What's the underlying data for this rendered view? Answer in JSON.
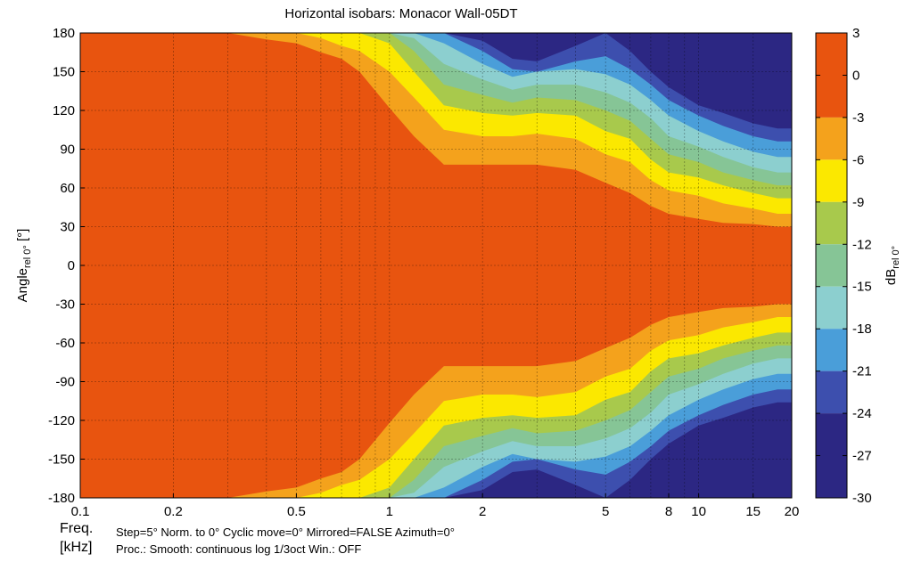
{
  "chart_data": {
    "type": "heatmap",
    "title": "Horizontal isobars: Monacor  Wall-05DT",
    "xlabel": "Freq.",
    "xlabel_unit": "[kHz]",
    "ylabel_main": "Angle",
    "ylabel_sub": "rel 0°",
    "ylabel_unit": " [°]",
    "x_scale": "log",
    "xlim": [
      0.1,
      20
    ],
    "x_ticks": [
      {
        "v": 0.1,
        "label": "0.1"
      },
      {
        "v": 0.2,
        "label": "0.2"
      },
      {
        "v": 0.5,
        "label": "0.5"
      },
      {
        "v": 1,
        "label": "1"
      },
      {
        "v": 2,
        "label": "2"
      },
      {
        "v": 5,
        "label": "5"
      },
      {
        "v": 8,
        "label": "8"
      },
      {
        "v": 10,
        "label": "10"
      },
      {
        "v": 15,
        "label": "15"
      },
      {
        "v": 20,
        "label": "20"
      }
    ],
    "ylim": [
      -180,
      180
    ],
    "y_ticks": [
      {
        "v": 180,
        "label": "180"
      },
      {
        "v": 150,
        "label": "150"
      },
      {
        "v": 120,
        "label": "120"
      },
      {
        "v": 90,
        "label": "90"
      },
      {
        "v": 60,
        "label": "60"
      },
      {
        "v": 30,
        "label": "30"
      },
      {
        "v": 0,
        "label": "0"
      },
      {
        "v": -30,
        "label": "-30"
      },
      {
        "v": -60,
        "label": "-60"
      },
      {
        "v": -90,
        "label": "-90"
      },
      {
        "v": -120,
        "label": "-120"
      },
      {
        "v": -150,
        "label": "-150"
      },
      {
        "v": -180,
        "label": "-180"
      }
    ],
    "grid": true,
    "colorbar": {
      "label_main": "dB",
      "label_sub": "rel 0°",
      "range": [
        -30,
        3
      ],
      "tick_labels": [
        "3",
        "0",
        "-3",
        "-6",
        "-9",
        "-12",
        "-15",
        "-18",
        "-21",
        "-24",
        "-27",
        "-30"
      ],
      "bands": [
        {
          "from": -3,
          "to": 3,
          "color": "#e8540f"
        },
        {
          "from": -6,
          "to": -3,
          "color": "#f4a21c"
        },
        {
          "from": -9,
          "to": -6,
          "color": "#fbe800"
        },
        {
          "from": -12,
          "to": -9,
          "color": "#a8c94c"
        },
        {
          "from": -15,
          "to": -12,
          "color": "#86c596"
        },
        {
          "from": -18,
          "to": -15,
          "color": "#8ccfcf"
        },
        {
          "from": -21,
          "to": -18,
          "color": "#4a9ed9"
        },
        {
          "from": -24,
          "to": -21,
          "color": "#3d4fae"
        },
        {
          "from": -30,
          "to": -24,
          "color": "#2c2783"
        }
      ]
    },
    "contour_boundaries_deg": {
      "freqs_khz": [
        0.1,
        0.2,
        0.3,
        0.4,
        0.5,
        0.6,
        0.7,
        0.8,
        1.0,
        1.2,
        1.5,
        2.0,
        2.5,
        3.0,
        4.0,
        5.0,
        6.0,
        7.0,
        8.0,
        10.0,
        12.0,
        15.0,
        18.0,
        20.0
      ],
      "minus3dB": [
        180,
        180,
        180,
        175,
        172,
        165,
        160,
        150,
        122,
        100,
        78,
        78,
        78,
        78,
        74,
        64,
        56,
        46,
        40,
        36,
        33,
        32,
        30,
        30
      ],
      "minus6dB": [
        180,
        180,
        180,
        180,
        180,
        176,
        170,
        166,
        150,
        130,
        105,
        100,
        100,
        102,
        98,
        86,
        80,
        66,
        58,
        54,
        48,
        44,
        40,
        40
      ],
      "minus9dB": [
        180,
        180,
        180,
        180,
        180,
        180,
        180,
        180,
        172,
        150,
        124,
        118,
        116,
        118,
        116,
        104,
        98,
        82,
        72,
        68,
        62,
        56,
        52,
        52
      ],
      "minus12dB": [
        180,
        180,
        180,
        180,
        180,
        180,
        180,
        180,
        180,
        166,
        140,
        132,
        126,
        130,
        128,
        120,
        112,
        98,
        86,
        80,
        72,
        66,
        62,
        62
      ],
      "minus15dB": [
        180,
        180,
        180,
        180,
        180,
        180,
        180,
        180,
        180,
        176,
        156,
        144,
        136,
        140,
        140,
        134,
        126,
        114,
        100,
        92,
        84,
        76,
        72,
        72
      ],
      "minus18dB": [
        180,
        180,
        180,
        180,
        180,
        180,
        180,
        180,
        180,
        180,
        172,
        156,
        146,
        150,
        152,
        148,
        140,
        128,
        116,
        104,
        96,
        88,
        84,
        84
      ],
      "minus21dB": [
        180,
        180,
        180,
        180,
        180,
        180,
        180,
        180,
        180,
        180,
        180,
        166,
        152,
        150,
        158,
        162,
        152,
        140,
        128,
        116,
        108,
        100,
        96,
        96
      ],
      "minus24dB": [
        180,
        180,
        180,
        180,
        180,
        180,
        180,
        180,
        180,
        180,
        180,
        174,
        160,
        158,
        170,
        180,
        166,
        150,
        138,
        124,
        118,
        110,
        106,
        106
      ]
    }
  },
  "footer": {
    "line1": "Step=5°    Norm. to 0°    Cyclic move=0°    Mirrored=FALSE    Azimuth=0°",
    "line2": "Proc.: Smooth: continuous log 1/3oct    Win.: OFF"
  }
}
